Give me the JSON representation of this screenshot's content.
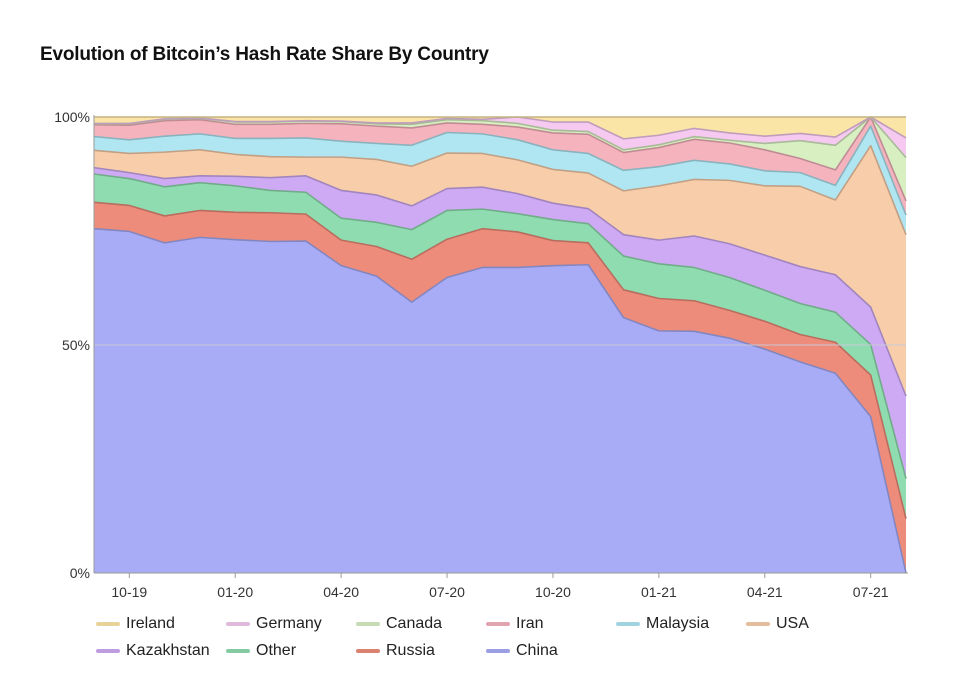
{
  "chart_data": {
    "type": "area",
    "stacked": true,
    "title": "Evolution of Bitcoin’s Hash Rate Share By Country",
    "xlabel": "",
    "ylabel": "",
    "ylim": [
      0,
      100
    ],
    "y_ticks": [
      "0%",
      "50%",
      "100%"
    ],
    "x_ticks": [
      "10-19",
      "01-20",
      "04-20",
      "07-20",
      "10-20",
      "01-21",
      "04-21",
      "07-21"
    ],
    "x": [
      "2019-09",
      "2019-10",
      "2019-11",
      "2019-12",
      "2020-01",
      "2020-02",
      "2020-03",
      "2020-04",
      "2020-05",
      "2020-06",
      "2020-07",
      "2020-08",
      "2020-09",
      "2020-10",
      "2020-11",
      "2020-12",
      "2021-01",
      "2021-02",
      "2021-03",
      "2021-04",
      "2021-05",
      "2021-06",
      "2021-07",
      "2021-08"
    ],
    "legend_position": "bottom",
    "grid": true,
    "series": [
      {
        "name": "China",
        "color": "#a8acf6",
        "values": [
          75.5,
          74.9,
          72.4,
          73.6,
          73.1,
          72.7,
          72.8,
          67.4,
          65.1,
          59.4,
          64.8,
          67.0,
          67.0,
          67.4,
          67.6,
          56.0,
          53.1,
          53.0,
          51.5,
          49.1,
          46.3,
          43.8,
          34.3,
          0.0
        ]
      },
      {
        "name": "Russia",
        "color": "#ed8c7a",
        "values": [
          5.8,
          5.7,
          5.9,
          5.9,
          6.0,
          6.3,
          5.9,
          5.6,
          6.5,
          9.4,
          8.4,
          8.5,
          7.8,
          5.5,
          4.8,
          6.1,
          7.1,
          6.7,
          6.1,
          6.1,
          6.0,
          6.8,
          9.1,
          11.9
        ]
      },
      {
        "name": "Other",
        "color": "#8fdcb0",
        "values": [
          6.2,
          5.9,
          6.4,
          6.1,
          5.8,
          4.9,
          4.8,
          4.8,
          5.3,
          6.5,
          6.3,
          4.3,
          4.0,
          4.6,
          4.2,
          7.4,
          7.6,
          7.3,
          7.2,
          6.8,
          6.8,
          6.6,
          6.7,
          8.8
        ]
      },
      {
        "name": "Kazakhstan",
        "color": "#cfaaf4",
        "values": [
          1.4,
          1.3,
          1.8,
          1.5,
          2.1,
          2.8,
          3.6,
          6.1,
          6.0,
          5.2,
          4.8,
          4.8,
          4.4,
          3.6,
          3.3,
          4.7,
          5.2,
          6.9,
          7.4,
          7.7,
          8.1,
          8.2,
          8.2,
          18.1
        ]
      },
      {
        "name": "USA",
        "color": "#f8cdaa",
        "values": [
          3.8,
          4.2,
          5.8,
          5.7,
          4.8,
          4.6,
          4.1,
          7.3,
          7.8,
          8.7,
          7.8,
          7.4,
          7.4,
          7.4,
          7.8,
          9.6,
          11.9,
          12.4,
          13.9,
          15.2,
          17.6,
          16.4,
          35.4,
          35.4
        ]
      },
      {
        "name": "Malaysia",
        "color": "#b0e6f2",
        "values": [
          3.0,
          3.0,
          3.5,
          3.5,
          3.5,
          4.0,
          4.2,
          3.5,
          3.5,
          4.6,
          4.5,
          4.3,
          4.4,
          4.3,
          4.3,
          4.5,
          4.2,
          4.2,
          3.6,
          3.3,
          3.0,
          3.2,
          4.3,
          4.3
        ]
      },
      {
        "name": "Iran",
        "color": "#f5b3be",
        "values": [
          2.6,
          3.2,
          3.4,
          3.1,
          3.1,
          3.1,
          3.2,
          3.8,
          3.8,
          3.8,
          2.1,
          2.1,
          2.8,
          3.7,
          4.2,
          3.9,
          4.2,
          4.6,
          4.6,
          4.6,
          3.1,
          3.4,
          3.1,
          3.1
        ]
      },
      {
        "name": "Canada",
        "color": "#d8efc2",
        "values": [
          0.2,
          0.3,
          0.3,
          0.3,
          0.5,
          0.5,
          0.5,
          0.5,
          0.5,
          0.8,
          0.7,
          0.8,
          0.8,
          0.6,
          0.6,
          0.6,
          0.6,
          0.6,
          0.6,
          1.4,
          3.9,
          5.4,
          10.0,
          9.5
        ]
      },
      {
        "name": "Germany",
        "color": "#f5c9f0",
        "values": [
          0.1,
          0.1,
          0.1,
          0.1,
          0.1,
          0.1,
          0.1,
          0.1,
          0.2,
          0.3,
          0.3,
          0.3,
          1.5,
          1.8,
          2.1,
          2.4,
          2.1,
          1.8,
          1.6,
          1.6,
          1.6,
          1.8,
          4.3,
          4.3
        ]
      },
      {
        "name": "Ireland",
        "color": "#fbe5a6",
        "values": [
          1.4,
          1.4,
          0.4,
          0.2,
          1.0,
          1.0,
          0.8,
          0.9,
          1.3,
          1.3,
          0.3,
          0.5,
          0.1,
          1.1,
          1.1,
          4.8,
          4.0,
          2.5,
          3.5,
          4.2,
          3.6,
          4.4,
          4.6,
          4.6
        ]
      }
    ],
    "legend_order": [
      "Ireland",
      "Germany",
      "Canada",
      "Iran",
      "Malaysia",
      "USA",
      "Kazakhstan",
      "Other",
      "Russia",
      "China"
    ]
  }
}
